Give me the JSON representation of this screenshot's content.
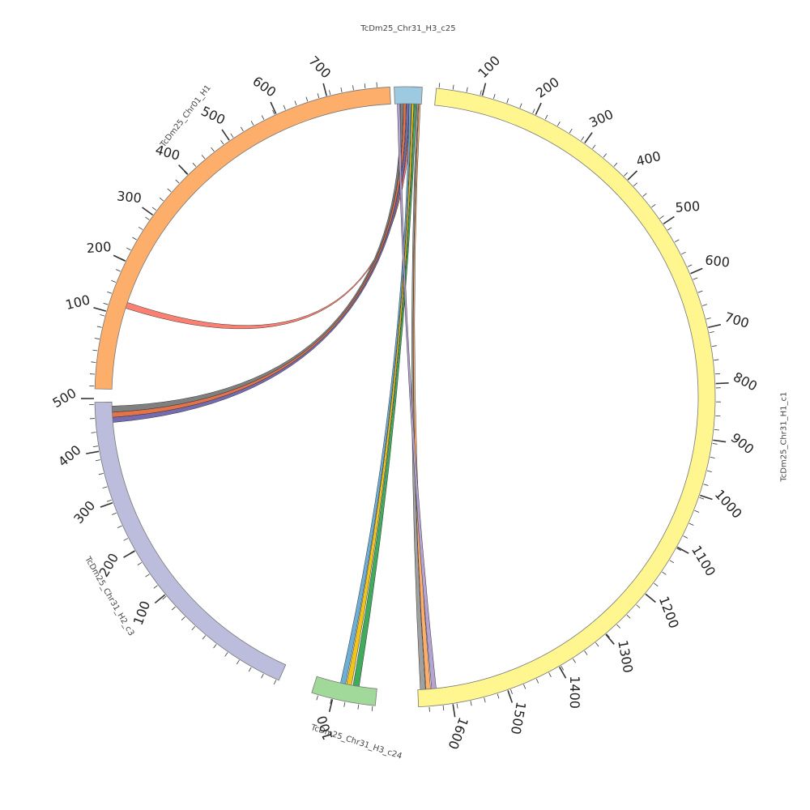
{
  "diagram": {
    "segments": [
      {
        "name": "TcDm25_Chr31_H3_c25",
        "color": "#9ecae1",
        "labels": []
      },
      {
        "name": "TcDm25_Chr31_H1_c1",
        "color": "#fff68f",
        "labels": [
          "100",
          "200",
          "300",
          "400",
          "500",
          "600",
          "700",
          "800",
          "900",
          "1000",
          "1100",
          "1200",
          "1300",
          "1400",
          "1500",
          "1600"
        ]
      },
      {
        "name": "TcDm25_Chr31_H3_c24",
        "color": "#a1d99b",
        "labels": [
          "100"
        ]
      },
      {
        "name": "TcDm25_Chr31_H2_c3",
        "color": "#bcbddc",
        "labels": [
          "100",
          "200",
          "300",
          "400",
          "500"
        ]
      },
      {
        "name": "TcDm25_Chr01_H1",
        "color": "#fdae6b",
        "labels": [
          "100",
          "200",
          "300",
          "400",
          "500",
          "600",
          "700"
        ]
      }
    ],
    "ribbons": [
      {
        "from": "TcDm25_Chr31_H3_c25",
        "to": "TcDm25_Chr01_H1",
        "color": "#fb8072"
      },
      {
        "from": "TcDm25_Chr31_H3_c25",
        "to": "TcDm25_Chr31_H2_c3",
        "color": "#808080"
      },
      {
        "from": "TcDm25_Chr31_H3_c25",
        "to": "TcDm25_Chr31_H2_c3",
        "color": "#e4734a"
      },
      {
        "from": "TcDm25_Chr31_H3_c25",
        "to": "TcDm25_Chr31_H2_c3",
        "color": "#756bb1"
      },
      {
        "from": "TcDm25_Chr31_H3_c25",
        "to": "TcDm25_Chr31_H3_c24",
        "color": "#41ab5d"
      },
      {
        "from": "TcDm25_Chr31_H3_c25",
        "to": "TcDm25_Chr31_H3_c24",
        "color": "#f0c419"
      },
      {
        "from": "TcDm25_Chr31_H3_c25",
        "to": "TcDm25_Chr31_H3_c24",
        "color": "#6baed6"
      },
      {
        "from": "TcDm25_Chr31_H3_c25",
        "to": "TcDm25_Chr31_H1_c1",
        "color": "#a0a0a0"
      },
      {
        "from": "TcDm25_Chr31_H3_c25",
        "to": "TcDm25_Chr31_H1_c1",
        "color": "#fdae6b"
      },
      {
        "from": "TcDm25_Chr31_H3_c25",
        "to": "TcDm25_Chr31_H1_c1",
        "color": "#b5a3d4"
      }
    ]
  }
}
